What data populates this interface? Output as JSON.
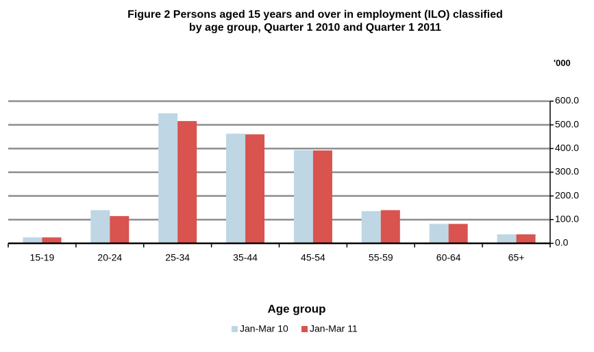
{
  "chart_data": {
    "type": "bar",
    "title": [
      "Figure 2 Persons aged 15 years and over in employment (ILO) classified",
      "by age group, Quarter 1 2010 and Quarter 1 2011"
    ],
    "y_unit": "'000",
    "x_label": "Age group",
    "categories": [
      "15-19",
      "20-24",
      "25-34",
      "35-44",
      "45-54",
      "55-59",
      "60-64",
      "65+"
    ],
    "series": [
      {
        "name": "Jan-Mar 10",
        "color": "#bfd6e4",
        "values": [
          25,
          140,
          549,
          463,
          393,
          136,
          82,
          38
        ]
      },
      {
        "name": "Jan-Mar 11",
        "color": "#d9534f",
        "values": [
          25,
          115,
          516,
          460,
          392,
          140,
          82,
          38
        ]
      }
    ],
    "ylim": [
      0,
      600
    ],
    "yticks": [
      {
        "value": 0,
        "label": "0.0"
      },
      {
        "value": 100,
        "label": "100.0"
      },
      {
        "value": 200,
        "label": "200.0"
      },
      {
        "value": 300,
        "label": "300.0"
      },
      {
        "value": 400,
        "label": "400.0"
      },
      {
        "value": 500,
        "label": "500.0"
      },
      {
        "value": 600,
        "label": "600.0"
      }
    ],
    "grid": true,
    "legend": "bottom"
  }
}
